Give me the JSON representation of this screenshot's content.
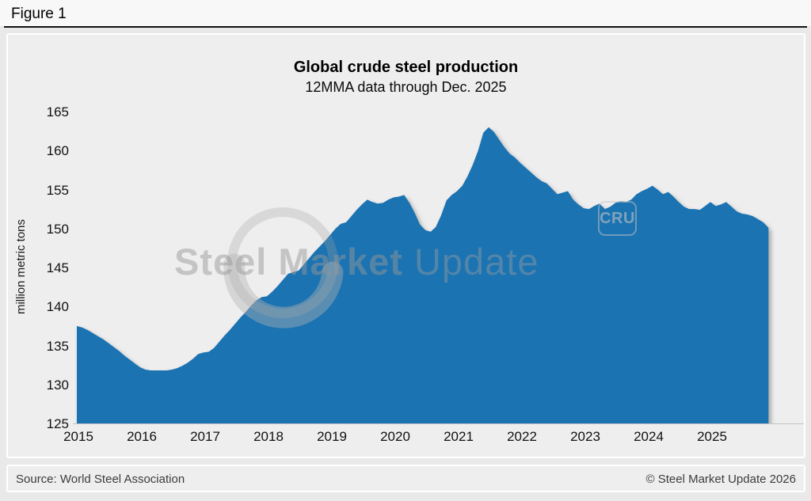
{
  "figure_label": "Figure 1",
  "chart_data": {
    "type": "area",
    "title": "Global crude steel production",
    "subtitle": "12MMA data through Dec. 2025",
    "ylabel": "million metric tons",
    "ylim": [
      125,
      165
    ],
    "yticks": [
      125,
      130,
      135,
      140,
      145,
      150,
      155,
      160,
      165
    ],
    "xticks": [
      2015,
      2016,
      2017,
      2018,
      2019,
      2020,
      2021,
      2022,
      2023,
      2024,
      2025
    ],
    "grid": false,
    "legend_position": "none",
    "fill_color": "#1b73b2",
    "series_name": "Global crude steel production, 12MMA",
    "x_start": "2015-01",
    "x_end": "2025-12",
    "frequency": "monthly",
    "values": [
      137.5,
      137.3,
      137.0,
      136.6,
      136.2,
      135.8,
      135.3,
      134.8,
      134.3,
      133.7,
      133.2,
      132.7,
      132.2,
      131.9,
      131.8,
      131.8,
      131.8,
      131.8,
      131.9,
      132.1,
      132.4,
      132.8,
      133.3,
      133.9,
      134.1,
      134.2,
      134.7,
      135.5,
      136.3,
      137.0,
      137.8,
      138.6,
      139.3,
      140.1,
      140.8,
      141.2,
      141.3,
      141.9,
      142.6,
      143.4,
      144.2,
      144.4,
      144.6,
      145.4,
      146.2,
      147.0,
      147.7,
      148.4,
      149.2,
      150.0,
      150.6,
      150.8,
      151.6,
      152.4,
      153.1,
      153.7,
      153.4,
      153.2,
      153.3,
      153.7,
      154.0,
      154.1,
      154.3,
      153.3,
      152.0,
      150.5,
      149.8,
      149.6,
      150.2,
      151.7,
      153.6,
      154.3,
      154.8,
      155.5,
      156.7,
      158.2,
      160.0,
      162.3,
      163.0,
      162.4,
      161.4,
      160.4,
      159.6,
      159.1,
      158.4,
      157.8,
      157.2,
      156.6,
      156.1,
      155.8,
      155.1,
      154.4,
      154.6,
      154.8,
      153.7,
      153.1,
      152.6,
      152.5,
      152.9,
      153.2,
      152.5,
      152.8,
      153.3,
      153.5,
      153.4,
      153.7,
      154.4,
      154.8,
      155.1,
      155.5,
      155.0,
      154.4,
      154.7,
      154.1,
      153.4,
      152.8,
      152.5,
      152.5,
      152.4,
      152.9,
      153.4,
      152.9,
      153.1,
      153.4,
      152.8,
      152.2,
      151.9,
      151.8,
      151.6,
      151.2,
      150.8,
      150.1
    ]
  },
  "watermark": {
    "brand_bold": "Steel Market",
    "brand_light": " Update",
    "cru_label": "CRU"
  },
  "footer": {
    "source": "Source: World Steel Association",
    "copyright": "© Steel Market Update 2026"
  }
}
